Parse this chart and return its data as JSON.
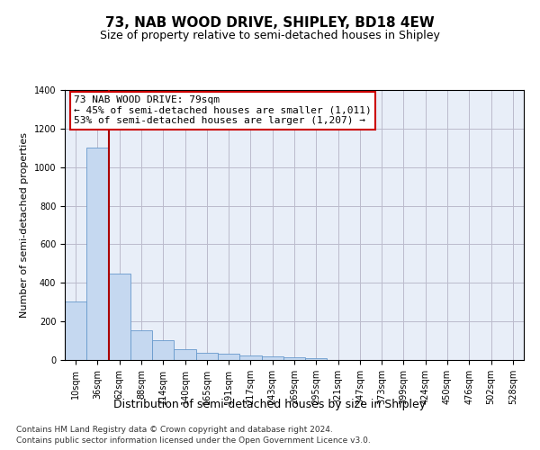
{
  "title": "73, NAB WOOD DRIVE, SHIPLEY, BD18 4EW",
  "subtitle": "Size of property relative to semi-detached houses in Shipley",
  "xlabel": "Distribution of semi-detached houses by size in Shipley",
  "ylabel": "Number of semi-detached properties",
  "footnote1": "Contains HM Land Registry data © Crown copyright and database right 2024.",
  "footnote2": "Contains public sector information licensed under the Open Government Licence v3.0.",
  "bar_labels": [
    "10sqm",
    "36sqm",
    "62sqm",
    "88sqm",
    "114sqm",
    "140sqm",
    "165sqm",
    "191sqm",
    "217sqm",
    "243sqm",
    "269sqm",
    "295sqm",
    "321sqm",
    "347sqm",
    "373sqm",
    "399sqm",
    "424sqm",
    "450sqm",
    "476sqm",
    "502sqm",
    "528sqm"
  ],
  "bar_values": [
    305,
    1100,
    450,
    155,
    105,
    55,
    38,
    35,
    22,
    20,
    15,
    10,
    0,
    0,
    0,
    0,
    0,
    0,
    0,
    0,
    0
  ],
  "bar_color": "#c5d8f0",
  "bar_edge_color": "#6699cc",
  "grid_color": "#bbbbcc",
  "bg_color": "#e8eef8",
  "vline_x_index": 1,
  "vline_color": "#aa0000",
  "annotation_line1": "73 NAB WOOD DRIVE: 79sqm",
  "annotation_line2": "← 45% of semi-detached houses are smaller (1,011)",
  "annotation_line3": "53% of semi-detached houses are larger (1,207) →",
  "annotation_box_color": "#cc0000",
  "ylim": [
    0,
    1400
  ],
  "yticks": [
    0,
    200,
    400,
    600,
    800,
    1000,
    1200,
    1400
  ],
  "title_fontsize": 11,
  "subtitle_fontsize": 9,
  "ylabel_fontsize": 8,
  "xlabel_fontsize": 9,
  "tick_fontsize": 7,
  "ann_fontsize": 8
}
